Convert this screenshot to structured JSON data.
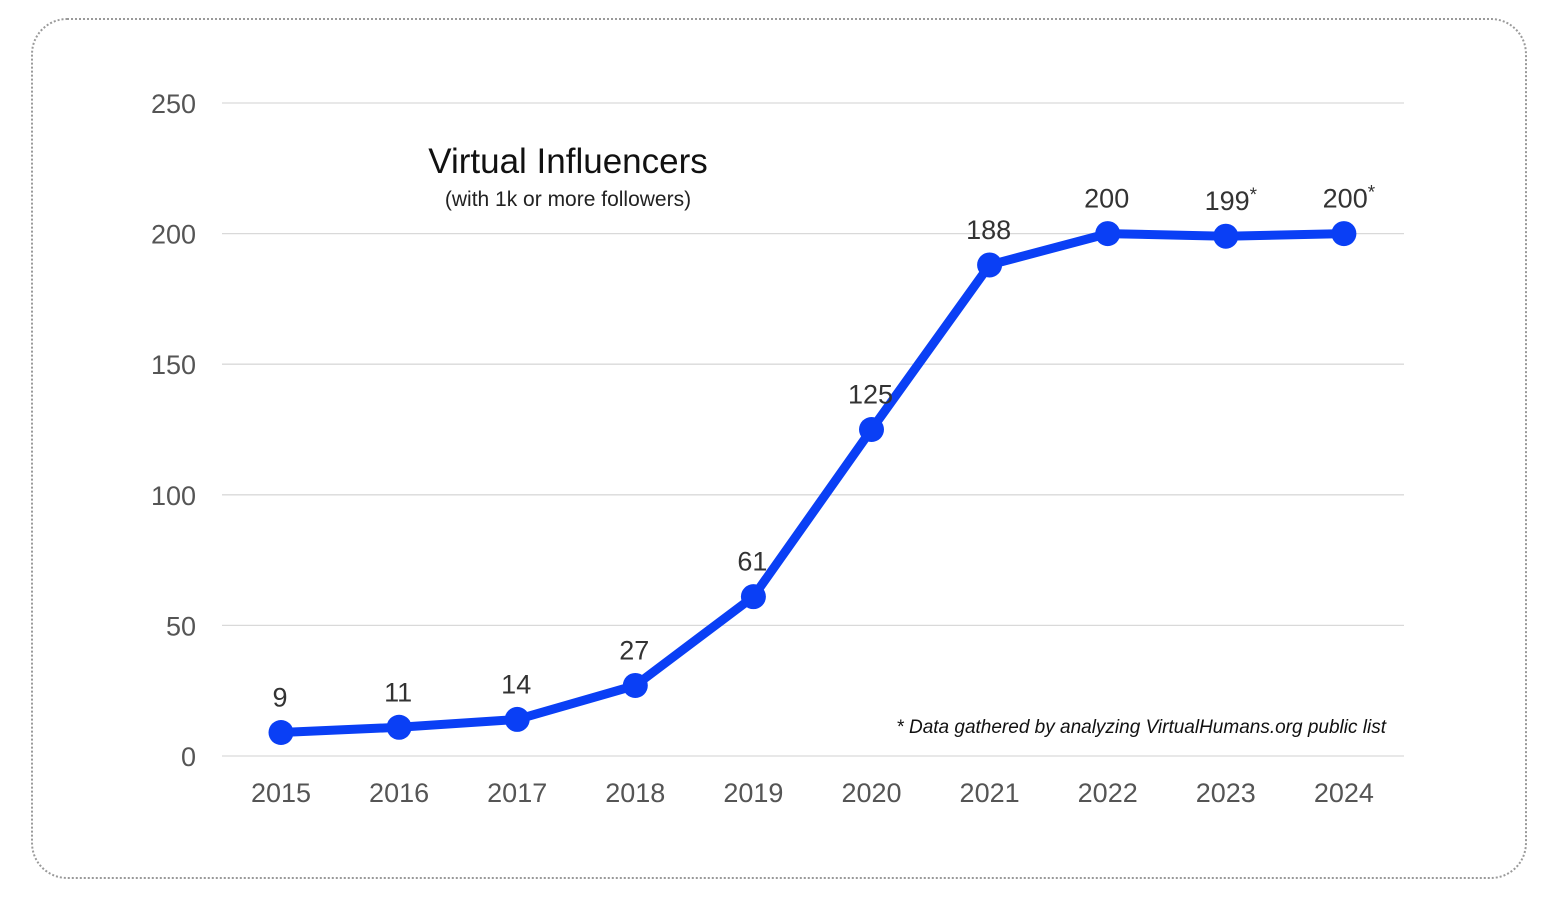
{
  "chart_data": {
    "type": "line",
    "title": "Virtual Influencers",
    "subtitle": "(with 1k or more followers)",
    "xlabel": "",
    "ylabel": "",
    "categories": [
      "2015",
      "2016",
      "2017",
      "2018",
      "2019",
      "2020",
      "2021",
      "2022",
      "2023",
      "2024"
    ],
    "series": [
      {
        "name": "Virtual Influencers",
        "values": [
          9,
          11,
          14,
          27,
          61,
          125,
          188,
          200,
          199,
          200
        ],
        "color": "#0a3ff5"
      }
    ],
    "data_labels": [
      "9",
      "11",
      "14",
      "27",
      "61",
      "125",
      "188",
      "200",
      "199*",
      "200*"
    ],
    "ylim": [
      0,
      250
    ],
    "yticks": [
      0,
      50,
      100,
      150,
      200,
      250
    ],
    "grid": true,
    "legend": "none",
    "annotation": "* Data gathered by analyzing VirtualHumans.org public list"
  }
}
